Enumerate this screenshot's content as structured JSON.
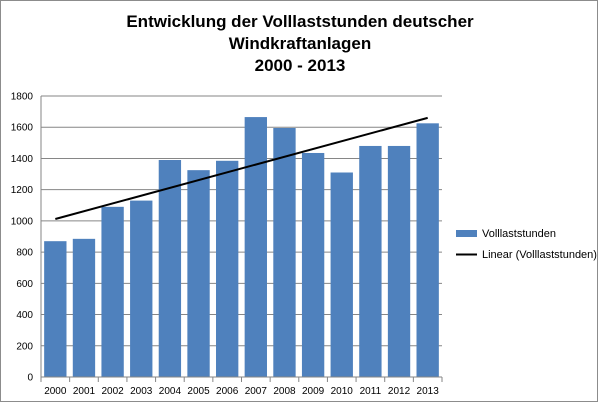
{
  "chart_data": {
    "type": "bar",
    "title_lines": [
      "Entwicklung der Volllaststunden deutscher",
      "Windkraftanlagen",
      "2000 - 2013"
    ],
    "categories": [
      "2000",
      "2001",
      "2002",
      "2003",
      "2004",
      "2005",
      "2006",
      "2007",
      "2008",
      "2009",
      "2010",
      "2011",
      "2012",
      "2013"
    ],
    "series": [
      {
        "name": "Volllaststunden",
        "values": [
          870,
          885,
          1090,
          1130,
          1390,
          1325,
          1385,
          1665,
          1595,
          1435,
          1310,
          1480,
          1480,
          1625
        ],
        "color": "#4f81bd"
      }
    ],
    "trendline": {
      "name": "Linear (Volllaststunden)",
      "type": "linear",
      "color": "#000000",
      "start": 1012,
      "end": 1660
    },
    "ylim": [
      0,
      1800
    ],
    "yticks": [
      0,
      200,
      400,
      600,
      800,
      1000,
      1200,
      1400,
      1600,
      1800
    ],
    "grid": true,
    "legend_position": "right",
    "xlabel": "",
    "ylabel": ""
  }
}
